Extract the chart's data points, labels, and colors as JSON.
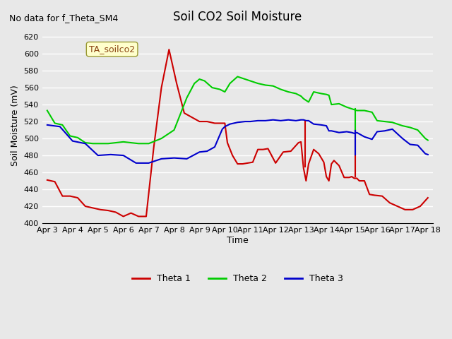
{
  "title": "Soil CO2 Soil Moisture",
  "no_data_text": "No data for f_Theta_SM4",
  "annotation_text": "TA_soilco2",
  "ylabel": "Soil Moisture (mV)",
  "xlabel": "Time",
  "ylim": [
    400,
    630
  ],
  "background_color": "#e8e8e8",
  "plot_bg_color": "#e8e8e8",
  "grid_color": "white",
  "x_labels": [
    "Apr 3",
    "Apr 4",
    "Apr 5",
    "Apr 6",
    "Apr 7",
    "Apr 8",
    "Apr 9",
    "Apr 10",
    "Apr 11",
    "Apr 12",
    "Apr 13",
    "Apr 14",
    "Apr 15",
    "Apr 16",
    "Apr 17",
    "Apr 18"
  ],
  "theta1_color": "#cc0000",
  "theta2_color": "#00cc00",
  "theta3_color": "#0000cc",
  "theta1_x": [
    0,
    0.3,
    0.6,
    0.9,
    1.2,
    1.5,
    1.8,
    2.1,
    2.4,
    2.7,
    3.0,
    3.3,
    3.6,
    3.9,
    4.2,
    4.5,
    4.8,
    5.1,
    5.4,
    5.7,
    6.0,
    6.3,
    6.6,
    6.9,
    7.0,
    7.1,
    7.3,
    7.5,
    7.7,
    7.9,
    8.1,
    8.3,
    8.5,
    8.7,
    9.0,
    9.3,
    9.6,
    9.9,
    10.0,
    10.1,
    10.2,
    10.3,
    10.5,
    10.7,
    10.9,
    11.0,
    11.1,
    11.2,
    11.3,
    11.5,
    11.7,
    11.9,
    12.0,
    12.1,
    12.2,
    12.3,
    12.5,
    12.7,
    12.9,
    13.2,
    13.5,
    13.8,
    14.1,
    14.4,
    14.7,
    15.0
  ],
  "theta1_y": [
    451,
    449,
    432,
    432,
    430,
    420,
    418,
    416,
    415,
    413,
    408,
    412,
    408,
    408,
    490,
    560,
    605,
    565,
    530,
    525,
    520,
    520,
    518,
    518,
    518,
    495,
    480,
    470,
    470,
    471,
    472,
    487,
    487,
    488,
    471,
    484,
    485,
    495,
    496,
    465,
    450,
    470,
    487,
    482,
    472,
    455,
    450,
    470,
    474,
    468,
    454,
    454,
    455,
    453,
    453,
    450,
    450,
    434,
    433,
    432,
    424,
    420,
    416,
    416,
    420,
    430
  ],
  "theta2_x": [
    0,
    0.3,
    0.6,
    0.9,
    1.2,
    1.5,
    1.8,
    2.1,
    2.4,
    2.7,
    3.0,
    3.3,
    3.6,
    4.0,
    4.5,
    5.0,
    5.5,
    5.8,
    6.0,
    6.2,
    6.5,
    6.8,
    7.0,
    7.2,
    7.5,
    7.8,
    8.0,
    8.3,
    8.6,
    8.9,
    9.2,
    9.5,
    9.8,
    10.0,
    10.1,
    10.2,
    10.3,
    10.5,
    10.8,
    11.0,
    11.1,
    11.2,
    11.5,
    11.8,
    12.0,
    12.1,
    12.2,
    12.5,
    12.8,
    13.0,
    13.3,
    13.6,
    14.0,
    14.3,
    14.6,
    14.9,
    15.0
  ],
  "theta2_y": [
    533,
    518,
    516,
    503,
    501,
    495,
    494,
    494,
    494,
    495,
    496,
    495,
    494,
    494,
    500,
    510,
    548,
    565,
    570,
    568,
    560,
    558,
    555,
    565,
    573,
    570,
    568,
    565,
    563,
    562,
    558,
    555,
    553,
    550,
    547,
    545,
    543,
    555,
    553,
    552,
    551,
    540,
    541,
    537,
    535,
    534,
    533,
    533,
    531,
    521,
    520,
    519,
    515,
    513,
    510,
    500,
    498
  ],
  "theta3_x": [
    0,
    0.5,
    1.0,
    1.5,
    2.0,
    2.5,
    3.0,
    3.5,
    4.0,
    4.5,
    5.0,
    5.5,
    6.0,
    6.3,
    6.6,
    6.9,
    7.0,
    7.2,
    7.5,
    7.8,
    8.0,
    8.3,
    8.6,
    8.9,
    9.2,
    9.5,
    9.8,
    10.0,
    10.1,
    10.2,
    10.3,
    10.5,
    10.8,
    11.0,
    11.1,
    11.2,
    11.5,
    11.8,
    12.0,
    12.1,
    12.2,
    12.5,
    12.8,
    13.0,
    13.3,
    13.6,
    14.0,
    14.3,
    14.6,
    14.9,
    15.0
  ],
  "theta3_y": [
    516,
    514,
    497,
    494,
    480,
    481,
    480,
    471,
    471,
    476,
    477,
    476,
    484,
    485,
    490,
    511,
    514,
    517,
    519,
    520,
    520,
    521,
    521,
    522,
    521,
    522,
    521,
    522,
    522,
    521,
    521,
    517,
    516,
    515,
    509,
    509,
    507,
    508,
    507,
    506,
    507,
    502,
    499,
    508,
    509,
    511,
    500,
    493,
    492,
    482,
    481
  ]
}
